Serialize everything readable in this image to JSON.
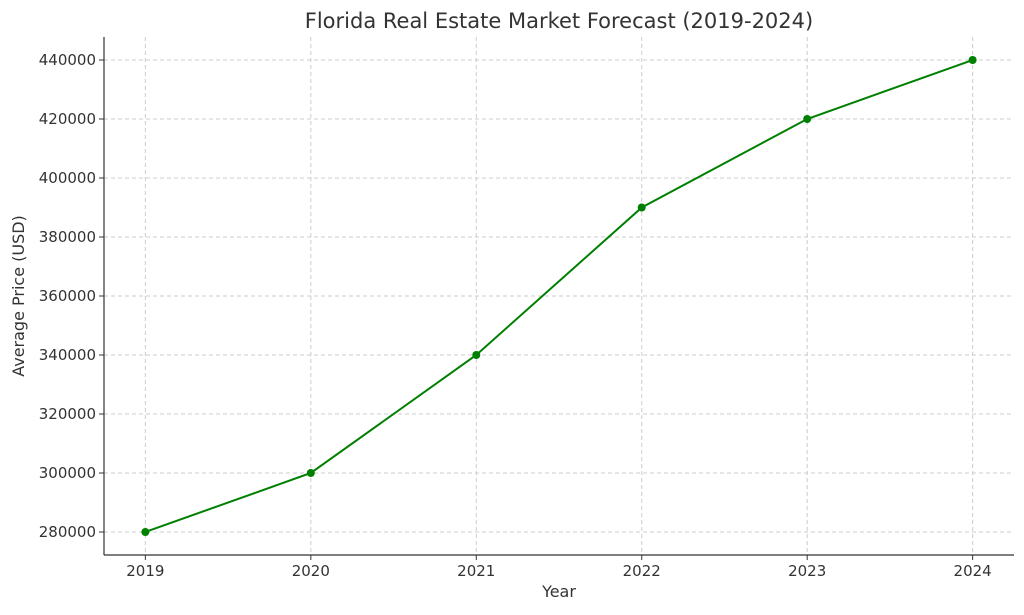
{
  "chart_data": {
    "type": "line",
    "title": "Florida Real Estate Market Forecast (2019-2024)",
    "xlabel": "Year",
    "ylabel": "Average Price (USD)",
    "x": [
      2019,
      2020,
      2021,
      2022,
      2023,
      2024
    ],
    "series": [
      {
        "values": [
          280000,
          300000,
          340000,
          390000,
          420000,
          440000
        ],
        "color": "#008000",
        "marker": "circle"
      }
    ],
    "xticks": [
      "2019",
      "2020",
      "2021",
      "2022",
      "2023",
      "2024"
    ],
    "yticks": [
      "280000",
      "300000",
      "320000",
      "340000",
      "360000",
      "380000",
      "400000",
      "420000",
      "440000"
    ],
    "xlim": [
      2018.75,
      2024.25
    ],
    "ylim": [
      272200,
      447800
    ],
    "grid": true,
    "grid_style": "dashed"
  }
}
